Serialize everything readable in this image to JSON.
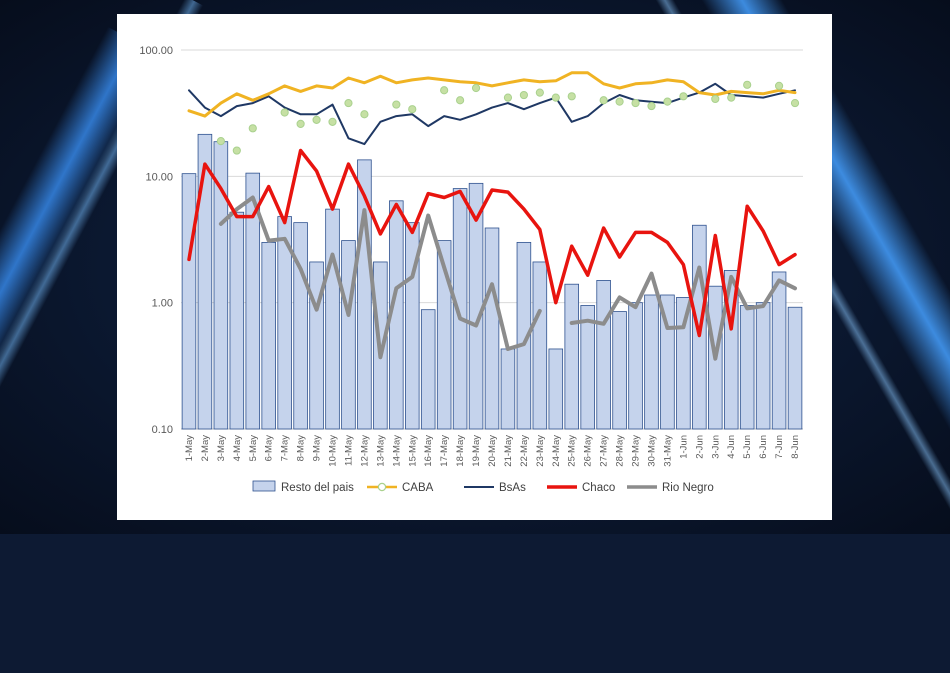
{
  "chart_data": {
    "type": "bar+line",
    "y_scale": "log",
    "ylim": [
      0.1,
      100
    ],
    "y_ticks": [
      "100.00",
      "10.00",
      "1.00",
      "0.10"
    ],
    "categories": [
      "1-May",
      "2-May",
      "3-May",
      "4-May",
      "5-May",
      "6-May",
      "7-May",
      "8-May",
      "9-May",
      "10-May",
      "11-May",
      "12-May",
      "13-May",
      "14-May",
      "15-May",
      "16-May",
      "17-May",
      "18-May",
      "19-May",
      "20-May",
      "21-May",
      "22-May",
      "23-May",
      "24-May",
      "25-May",
      "26-May",
      "27-May",
      "28-May",
      "29-May",
      "30-May",
      "31-May",
      "1-Jun",
      "2-Jun",
      "3-Jun",
      "4-Jun",
      "5-Jun",
      "6-Jun",
      "7-Jun",
      "8-Jun"
    ],
    "legend_position": "bottom",
    "grid": "horizontal",
    "series": [
      {
        "name": "Resto del pais",
        "kind": "bar",
        "color": "#c5d3ec",
        "stroke": "#2f528f",
        "values": [
          10.5,
          21.5,
          18.8,
          5.2,
          10.6,
          3.0,
          4.8,
          4.3,
          2.1,
          5.5,
          3.1,
          13.5,
          2.1,
          6.4,
          4.3,
          0.88,
          3.1,
          8.0,
          8.8,
          3.9,
          0.43,
          3.0,
          2.1,
          0.43,
          1.4,
          0.95,
          1.5,
          0.85,
          1.0,
          1.15,
          1.15,
          1.1,
          4.1,
          1.35,
          1.8,
          0.95,
          1.0,
          1.75,
          0.92
        ]
      },
      {
        "name": "CABA",
        "kind": "line",
        "color": "#f0b323",
        "marker_color": "#c6e0a4",
        "values": [
          33,
          30,
          38,
          45,
          40,
          45,
          52,
          47,
          52,
          50,
          60,
          55,
          62,
          55,
          58,
          60,
          58,
          56,
          55,
          52,
          55,
          58,
          56,
          57,
          66,
          66,
          54,
          50,
          54,
          55,
          58,
          56,
          46,
          44,
          47,
          46,
          45,
          48,
          46
        ],
        "markers": [
          null,
          null,
          19,
          16,
          24,
          null,
          32,
          26,
          28,
          27,
          38,
          31,
          null,
          37,
          34,
          null,
          48,
          40,
          50,
          null,
          42,
          44,
          46,
          42,
          43,
          null,
          40,
          39,
          38,
          36,
          39,
          43,
          null,
          41,
          42,
          53,
          null,
          52,
          38
        ]
      },
      {
        "name": "BsAs",
        "kind": "line",
        "color": "#1f3864",
        "values": [
          48,
          35,
          30,
          36,
          38,
          43,
          35,
          31,
          31,
          37,
          20,
          18,
          27,
          30,
          31,
          25,
          30,
          28,
          31,
          35,
          38,
          34,
          38,
          42,
          27,
          30,
          38,
          44,
          40,
          39,
          38,
          42,
          46,
          54,
          44,
          43,
          42,
          45,
          48
        ]
      },
      {
        "name": "Chaco",
        "kind": "line",
        "color": "#e8140f",
        "values": [
          2.2,
          12.5,
          8.0,
          4.8,
          4.8,
          8.3,
          4.3,
          16.0,
          11.0,
          5.5,
          12.5,
          7.0,
          3.5,
          6.0,
          3.6,
          7.3,
          6.8,
          7.6,
          4.5,
          7.8,
          7.5,
          5.5,
          3.8,
          1.0,
          2.8,
          1.65,
          3.9,
          2.3,
          3.6,
          3.6,
          3.0,
          2.0,
          0.55,
          3.4,
          0.62,
          5.8,
          3.7,
          2.0,
          2.4
        ]
      },
      {
        "name": "Rio Negro",
        "kind": "line",
        "color": "#8c8c8c",
        "values": [
          null,
          null,
          4.2,
          5.5,
          6.8,
          3.1,
          3.2,
          1.85,
          0.88,
          2.4,
          0.8,
          5.4,
          0.37,
          1.3,
          1.6,
          4.9,
          1.9,
          0.75,
          0.66,
          1.4,
          0.43,
          0.47,
          0.86,
          null,
          0.69,
          0.72,
          0.68,
          1.1,
          0.92,
          1.7,
          0.63,
          0.64,
          1.9,
          0.36,
          1.6,
          0.9,
          0.94,
          1.5,
          1.3
        ]
      }
    ]
  }
}
